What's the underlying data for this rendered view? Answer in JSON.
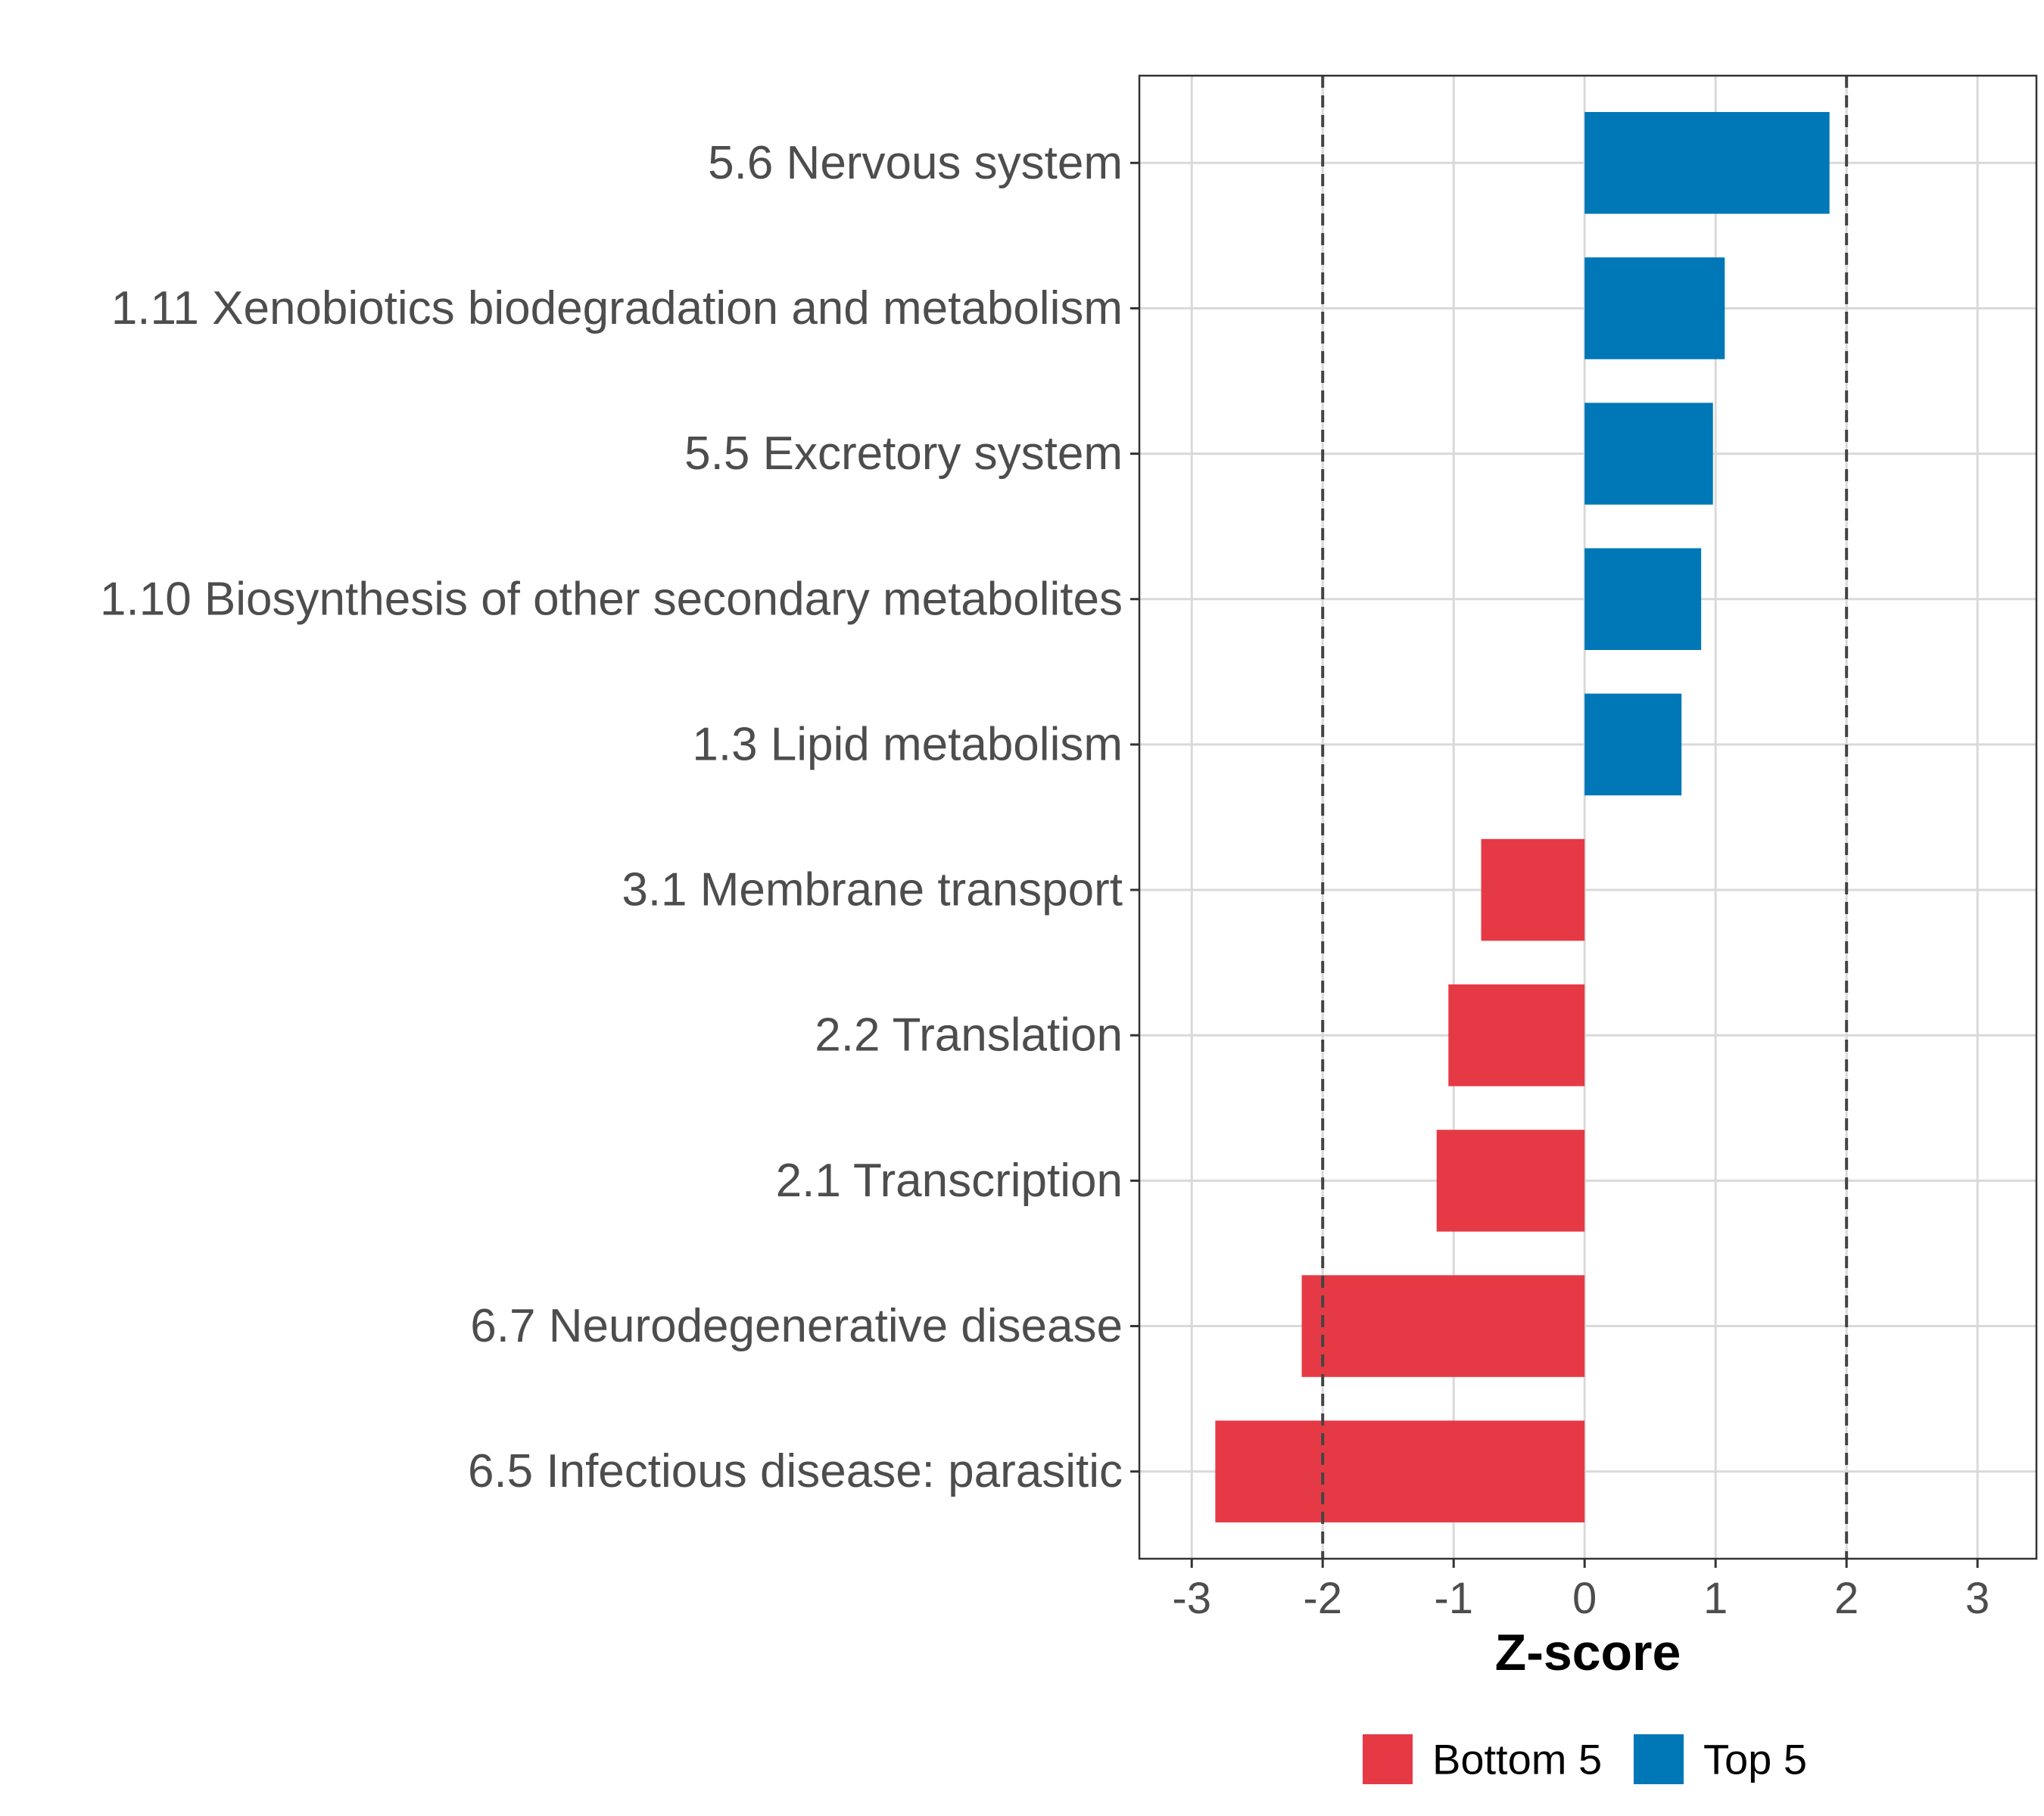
{
  "chart_data": {
    "type": "bar",
    "orientation": "horizontal",
    "categories": [
      "5.6 Nervous system",
      "1.11 Xenobiotics biodegradation and metabolism",
      "5.5 Excretory system",
      "1.10 Biosynthesis of other secondary metabolites",
      "1.3 Lipid metabolism",
      "3.1 Membrane transport",
      "2.2 Translation",
      "2.1 Transcription",
      "6.7 Neurodegenerative disease",
      "6.5 Infectious disease: parasitic"
    ],
    "values": [
      1.87,
      1.07,
      0.98,
      0.89,
      0.74,
      -0.79,
      -1.04,
      -1.13,
      -2.16,
      -2.82
    ],
    "groups": [
      "Top 5",
      "Top 5",
      "Top 5",
      "Top 5",
      "Top 5",
      "Bottom 5",
      "Bottom 5",
      "Bottom 5",
      "Bottom 5",
      "Bottom 5"
    ],
    "xlabel": "Z-score",
    "xlim": [
      -3.4,
      3.45
    ],
    "xticks": [
      -3,
      -2,
      -1,
      0,
      1,
      2,
      3
    ],
    "reference_lines": [
      -2,
      2
    ],
    "grid": true,
    "legend": {
      "position": "bottom",
      "entries": [
        {
          "label": "Bottom 5",
          "color": "#e63946"
        },
        {
          "label": "Top 5",
          "color": "#0077b6"
        }
      ]
    },
    "colors": {
      "Bottom 5": "#e63946",
      "Top 5": "#0077b6"
    }
  }
}
